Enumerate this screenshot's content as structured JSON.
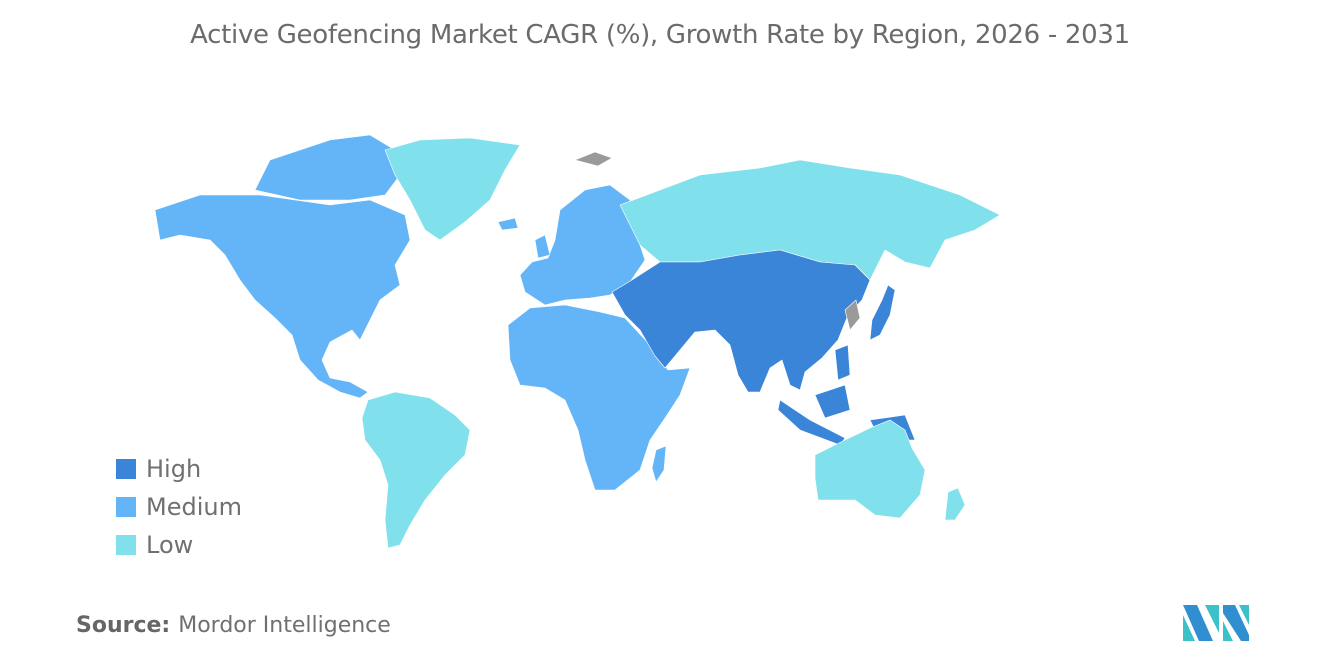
{
  "title": "Active Geofencing Market CAGR (%), Growth Rate by Region, 2026 - 2031",
  "legend": [
    {
      "label": "High",
      "color": "#3b85d9"
    },
    {
      "label": "Medium",
      "color": "#63b5f8"
    },
    {
      "label": "Low",
      "color": "#80e1ed"
    }
  ],
  "no_data_color": "#9a9a9a",
  "regions": {
    "north_america": "Medium",
    "greenland": "Low",
    "south_america": "Low",
    "europe": "Medium",
    "africa": "Medium",
    "russia": "Low",
    "middle_east_central_south_east_asia": "High",
    "japan": "High",
    "southeast_asia_islands": "High",
    "australia_new_zealand": "Low"
  },
  "source": {
    "label": "Source:",
    "value": "Mordor Intelligence"
  }
}
